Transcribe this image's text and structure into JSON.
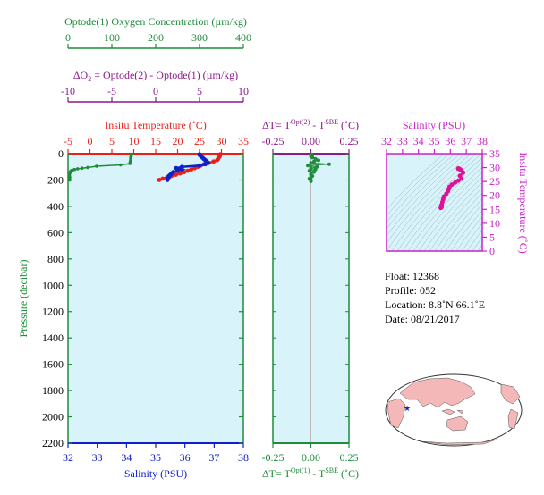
{
  "colors": {
    "oxygen": "#1e8c3a",
    "delta_o2": "#8b1a8b",
    "temperature": "#e8201a",
    "salinity": "#1020c8",
    "salinity_title": "#cc1fcc",
    "ts_points": "#e0109a",
    "panel_bg": "#d9f3fa",
    "pressure_axis": "#1e8c3a",
    "land": "#f4b8b8"
  },
  "labels": {
    "oxygen_axis": "Optode(1) Oxygen Concentration  (µm/kg)",
    "delta_o2_axis_lhs": "ΔO",
    "delta_o2_axis_sub": "2",
    "delta_o2_axis_rhs": " = Optode(2) - Optode(1)    (µm/kg)",
    "temperature_axis": "Insitu Temperature (˚C)",
    "salinity_axis": "Salinity (PSU)",
    "pressure_axis": "Pressure (decibar)",
    "dt_top_a": "ΔT= T",
    "dt_top_sup1": "Opt(2)",
    "dt_top_b": " - T",
    "dt_top_sup2": "SBE",
    "dt_top_c": " (˚C)",
    "dt_bottom_a": "ΔT= T",
    "dt_bottom_sup1": "Opt(1)",
    "dt_bottom_b": " - T",
    "dt_bottom_sup2": "SBE",
    "dt_bottom_c": " (˚C)",
    "ts_title": "Salinity (PSU)",
    "ts_yaxis": "Insitu Temperature (˚C)"
  },
  "float_info": {
    "float": "Float:  12368",
    "profile": "Profile:  052",
    "location": "Location:  8.8˚N  66.1˚E",
    "date": "Date:  08/21/2017"
  },
  "chart_data": [
    {
      "type": "line",
      "name": "profile-panel",
      "ylabel": "Pressure (decibar)",
      "ylim": [
        2200,
        0
      ],
      "yticks": [
        0,
        200,
        400,
        600,
        800,
        1000,
        1200,
        1400,
        1600,
        1800,
        2000,
        2200
      ],
      "axes": {
        "oxygen": {
          "label": "Optode(1) Oxygen Concentration  (µm/kg)",
          "range": [
            0,
            400
          ],
          "ticks": [
            0,
            100,
            200,
            300,
            400
          ]
        },
        "delta_o2": {
          "label": "ΔO2 = Optode(2) - Optode(1)    (µm/kg)",
          "range": [
            -10,
            10
          ],
          "ticks": [
            -10,
            -5,
            0,
            5,
            10
          ]
        },
        "temperature": {
          "label": "Insitu Temperature (˚C)",
          "range": [
            -5,
            35
          ],
          "ticks": [
            -5,
            0,
            5,
            10,
            15,
            20,
            25,
            30,
            35
          ]
        },
        "salinity": {
          "label": "Salinity (PSU)",
          "range": [
            32,
            38
          ],
          "ticks": [
            32,
            33,
            34,
            35,
            36,
            37,
            38
          ]
        }
      },
      "series": [
        {
          "axis": "oxygen",
          "p": [
            5,
            10,
            20,
            30,
            45,
            60,
            75,
            85,
            95,
            105,
            110,
            115,
            120,
            125,
            130,
            135,
            140,
            145,
            150,
            160,
            170,
            180,
            190,
            200
          ],
          "v": [
            145,
            144,
            144,
            143,
            143,
            142,
            141,
            120,
            65,
            45,
            32,
            22,
            15,
            10,
            7,
            6,
            5,
            4,
            4,
            3,
            3,
            4,
            3,
            4
          ]
        },
        {
          "axis": "temperature",
          "p": [
            5,
            10,
            20,
            30,
            40,
            50,
            60,
            70,
            80,
            90,
            100,
            110,
            120,
            130,
            140,
            150,
            160,
            170,
            180,
            190,
            200
          ],
          "v": [
            29.7,
            29.6,
            29.6,
            29.4,
            29.2,
            29.0,
            28.2,
            27.0,
            26.0,
            25.3,
            24.6,
            23.9,
            23.1,
            22.3,
            21.5,
            20.6,
            19.6,
            18.6,
            17.6,
            16.6,
            15.8
          ]
        },
        {
          "axis": "salinity",
          "p": [
            5,
            10,
            20,
            30,
            40,
            50,
            60,
            70,
            80,
            90,
            100,
            110,
            120,
            130,
            140,
            150,
            160,
            170,
            180,
            190,
            200
          ],
          "v": [
            36.5,
            36.5,
            36.55,
            36.6,
            36.65,
            36.7,
            36.75,
            36.8,
            36.7,
            36.5,
            35.9,
            35.7,
            35.9,
            35.75,
            35.6,
            35.55,
            35.5,
            35.45,
            35.45,
            35.4,
            35.4
          ]
        }
      ]
    },
    {
      "type": "line",
      "name": "delta-t-panel",
      "xlim": [
        -0.25,
        0.25
      ],
      "xticks": [
        -0.25,
        0.0,
        0.25
      ],
      "xticklabels": [
        "-0.25",
        "0.00",
        "0.25"
      ],
      "ylim": [
        2200,
        0
      ],
      "series": [
        {
          "p": [
            5,
            10,
            20,
            30,
            40,
            50,
            60,
            70,
            80,
            90,
            100,
            110,
            120,
            130,
            140,
            150,
            160,
            170,
            180,
            190,
            200,
            210
          ],
          "v": [
            0.0,
            0.01,
            0.0,
            0.01,
            0.03,
            0.05,
            0.02,
            0.0,
            0.12,
            -0.02,
            0.04,
            0.0,
            0.03,
            -0.01,
            0.02,
            0.0,
            0.0,
            0.01,
            0.0,
            -0.01,
            0.0,
            0.0
          ]
        }
      ]
    },
    {
      "type": "scatter",
      "name": "ts-diagram",
      "title": "Salinity (PSU)",
      "xlim": [
        32,
        38
      ],
      "xticks": [
        32,
        33,
        34,
        35,
        36,
        37,
        38
      ],
      "ylim": [
        0,
        35
      ],
      "yticks": [
        0,
        5,
        10,
        15,
        20,
        25,
        30,
        35
      ],
      "ylabel": "Insitu Temperature (˚C)",
      "grid": true,
      "series": [
        {
          "salinity": [
            36.5,
            36.5,
            36.55,
            36.6,
            36.7,
            36.8,
            36.6,
            36.7,
            36.5,
            36.3,
            36.1,
            35.95,
            35.9,
            35.85,
            35.75,
            35.6,
            35.55,
            35.5,
            35.45,
            35.45,
            35.4
          ],
          "temperature": [
            29.7,
            29.6,
            29.6,
            29.4,
            29.0,
            28.2,
            27.0,
            26.0,
            25.3,
            24.6,
            23.9,
            23.1,
            22.3,
            21.5,
            20.6,
            19.6,
            18.6,
            17.6,
            16.6,
            15.8,
            15.5
          ]
        }
      ]
    }
  ]
}
